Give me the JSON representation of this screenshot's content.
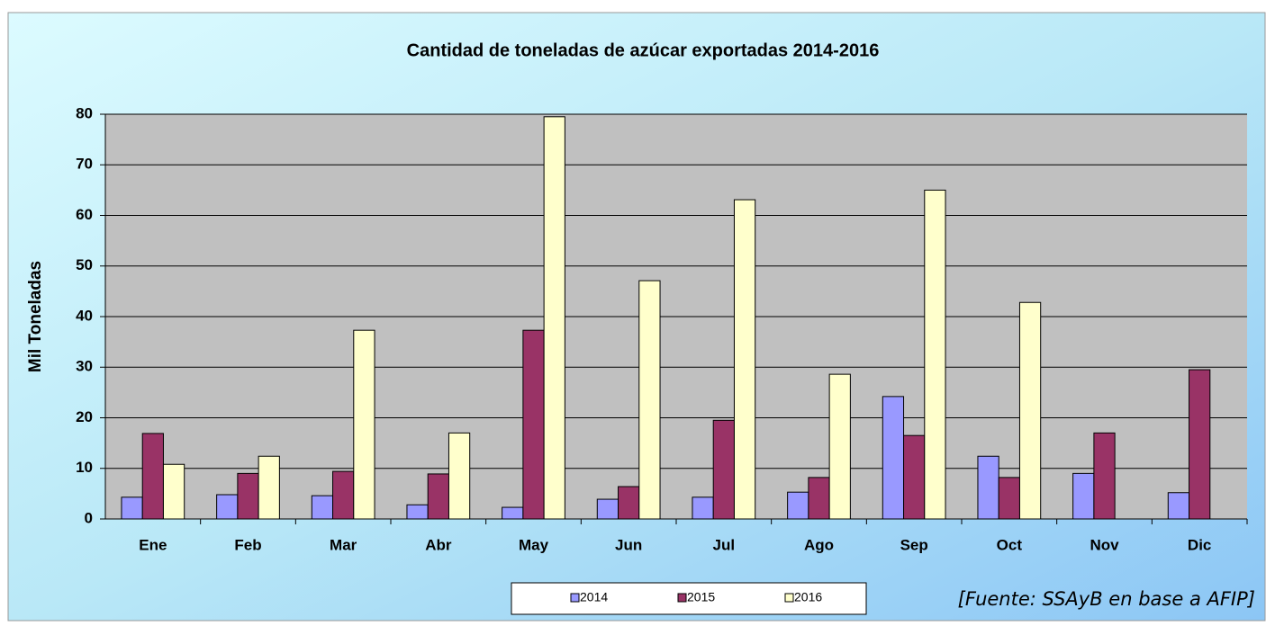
{
  "chart_data": {
    "type": "bar",
    "title": "Cantidad de toneladas de azúcar exportadas 2014-2016",
    "y_label": "Mil Toneladas",
    "annotation": "[Fuente: SSAyB en base a AFIP]",
    "categories": [
      "Ene",
      "Feb",
      "Mar",
      "Abr",
      "May",
      "Jun",
      "Jul",
      "Ago",
      "Sep",
      "Oct",
      "Nov",
      "Dic"
    ],
    "series": [
      {
        "name": "2014",
        "color": "#9999ff",
        "values": [
          4.3,
          4.8,
          4.6,
          2.8,
          2.3,
          3.9,
          4.3,
          5.3,
          24.2,
          12.4,
          9,
          5.2
        ]
      },
      {
        "name": "2015",
        "color": "#993366",
        "values": [
          16.9,
          9,
          9.4,
          8.9,
          37.3,
          6.4,
          19.5,
          8.2,
          16.5,
          8.2,
          17,
          29.5
        ]
      },
      {
        "name": "2016",
        "color": "#ffffcc",
        "values": [
          10.8,
          12.4,
          37.3,
          17,
          79.5,
          47.1,
          63.1,
          28.6,
          65,
          42.8,
          null,
          null
        ]
      }
    ],
    "ylim": [
      0,
      80
    ],
    "yticks": [
      0,
      10,
      20,
      30,
      40,
      50,
      60,
      70,
      80
    ],
    "grid": true,
    "legend": "bottom"
  }
}
